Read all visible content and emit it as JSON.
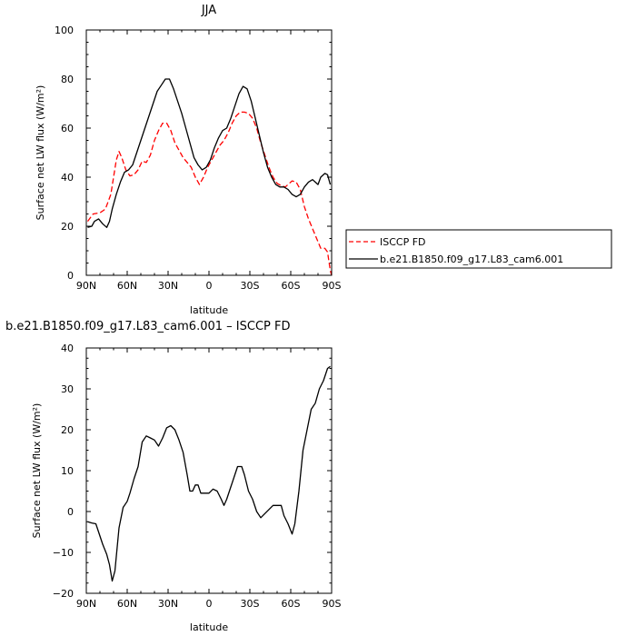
{
  "chart_data": [
    {
      "type": "line",
      "title": "JJA",
      "xlabel": "latitude",
      "ylabel": "Surface net LW flux (W/m²)",
      "xlim": [
        90,
        -90
      ],
      "ylim": [
        0,
        100
      ],
      "x_ticks": [
        90,
        60,
        30,
        0,
        -30,
        -60,
        -90
      ],
      "x_tick_labels": [
        "90N",
        "60N",
        "30N",
        "0",
        "30S",
        "60S",
        "90S"
      ],
      "y_ticks": [
        0,
        20,
        40,
        60,
        80,
        100
      ],
      "y_tick_labels": [
        "0",
        "20",
        "40",
        "60",
        "80",
        "100"
      ],
      "legend": {
        "placement": "right"
      },
      "series": [
        {
          "name": "ISCCP FD",
          "color": "#ff0000",
          "dash": true,
          "points": [
            [
              89,
              22
            ],
            [
              85,
              25
            ],
            [
              80,
              25.5
            ],
            [
              76,
              27
            ],
            [
              72,
              33
            ],
            [
              68,
              47
            ],
            [
              66,
              50.5
            ],
            [
              64,
              48
            ],
            [
              61,
              43
            ],
            [
              58,
              40.5
            ],
            [
              55,
              41
            ],
            [
              52,
              43
            ],
            [
              49,
              46.5
            ],
            [
              46,
              46
            ],
            [
              43,
              49
            ],
            [
              40,
              55
            ],
            [
              37,
              59
            ],
            [
              34,
              62
            ],
            [
              31,
              62
            ],
            [
              28,
              59
            ],
            [
              25,
              54
            ],
            [
              22,
              51
            ],
            [
              19,
              48
            ],
            [
              16,
              46
            ],
            [
              13,
              44
            ],
            [
              10,
              40
            ],
            [
              7,
              37
            ],
            [
              4,
              40
            ],
            [
              1,
              44
            ],
            [
              -2,
              47
            ],
            [
              -5,
              50
            ],
            [
              -8,
              53
            ],
            [
              -11,
              55
            ],
            [
              -14,
              58
            ],
            [
              -17,
              62
            ],
            [
              -20,
              65
            ],
            [
              -23,
              66.5
            ],
            [
              -26,
              66.5
            ],
            [
              -29,
              66
            ],
            [
              -32,
              64
            ],
            [
              -35,
              60
            ],
            [
              -38,
              54
            ],
            [
              -41,
              49
            ],
            [
              -44,
              44
            ],
            [
              -47,
              40
            ],
            [
              -50,
              37.5
            ],
            [
              -53,
              36.5
            ],
            [
              -56,
              36
            ],
            [
              -58,
              37
            ],
            [
              -61,
              38.5
            ],
            [
              -64,
              38
            ],
            [
              -67,
              35
            ],
            [
              -70,
              28
            ],
            [
              -73,
              23
            ],
            [
              -76,
              19
            ],
            [
              -79,
              15
            ],
            [
              -82,
              11
            ],
            [
              -85,
              11
            ],
            [
              -87,
              9.5
            ],
            [
              -89,
              2
            ],
            [
              -90,
              0
            ]
          ]
        },
        {
          "name": "b.e21.B1850.f09_g17.L83_cam6.001",
          "color": "#000000",
          "dash": false,
          "points": [
            [
              89,
              19.5
            ],
            [
              86,
              20
            ],
            [
              84,
              22
            ],
            [
              81,
              23
            ],
            [
              78,
              21
            ],
            [
              75,
              19.5
            ],
            [
              73,
              22
            ],
            [
              71,
              27
            ],
            [
              68,
              33
            ],
            [
              65,
              38
            ],
            [
              62,
              42
            ],
            [
              59,
              43
            ],
            [
              56,
              45
            ],
            [
              53,
              50
            ],
            [
              50,
              55
            ],
            [
              47,
              60
            ],
            [
              44,
              65
            ],
            [
              41,
              70
            ],
            [
              38,
              75
            ],
            [
              35,
              77.5
            ],
            [
              32,
              80
            ],
            [
              29,
              80
            ],
            [
              26,
              76
            ],
            [
              23,
              71
            ],
            [
              20,
              66
            ],
            [
              17,
              60
            ],
            [
              14,
              54
            ],
            [
              11,
              48
            ],
            [
              8,
              45
            ],
            [
              5,
              43
            ],
            [
              2,
              44
            ],
            [
              -1,
              47
            ],
            [
              -4,
              52
            ],
            [
              -7,
              56
            ],
            [
              -10,
              59
            ],
            [
              -13,
              60
            ],
            [
              -16,
              64
            ],
            [
              -19,
              69
            ],
            [
              -22,
              74
            ],
            [
              -25,
              77
            ],
            [
              -28,
              76
            ],
            [
              -31,
              71
            ],
            [
              -34,
              64
            ],
            [
              -37,
              57
            ],
            [
              -40,
              50
            ],
            [
              -43,
              44
            ],
            [
              -46,
              40
            ],
            [
              -49,
              37
            ],
            [
              -52,
              36
            ],
            [
              -55,
              36
            ],
            [
              -58,
              35
            ],
            [
              -61,
              33
            ],
            [
              -64,
              32
            ],
            [
              -67,
              33
            ],
            [
              -70,
              36
            ],
            [
              -73,
              38
            ],
            [
              -76,
              39
            ],
            [
              -78,
              38
            ],
            [
              -80,
              37
            ],
            [
              -82,
              40
            ],
            [
              -85,
              41.5
            ],
            [
              -87,
              41
            ],
            [
              -89,
              37
            ]
          ]
        }
      ]
    },
    {
      "type": "line",
      "title": "b.e21.B1850.f09_g17.L83_cam6.001 – ISCCP FD",
      "xlabel": "latitude",
      "ylabel": "Surface net LW flux (W/m²)",
      "xlim": [
        90,
        -90
      ],
      "ylim": [
        -20,
        40
      ],
      "x_ticks": [
        90,
        60,
        30,
        0,
        -30,
        -60,
        -90
      ],
      "x_tick_labels": [
        "90N",
        "60N",
        "30N",
        "0",
        "30S",
        "60S",
        "90S"
      ],
      "y_ticks": [
        -20,
        -10,
        0,
        10,
        20,
        30,
        40
      ],
      "y_tick_labels": [
        "−20",
        "−10",
        "0",
        "10",
        "20",
        "30",
        "40"
      ],
      "series": [
        {
          "color": "#000000",
          "dash": false,
          "points": [
            [
              89,
              -2.5
            ],
            [
              86,
              -2.8
            ],
            [
              83,
              -3
            ],
            [
              80,
              -6
            ],
            [
              78,
              -8
            ],
            [
              75,
              -10.5
            ],
            [
              73,
              -13
            ],
            [
              71,
              -17
            ],
            [
              69,
              -14.5
            ],
            [
              66,
              -4
            ],
            [
              63,
              1
            ],
            [
              60,
              2.5
            ],
            [
              58,
              4.5
            ],
            [
              55,
              8
            ],
            [
              52,
              11
            ],
            [
              49,
              17
            ],
            [
              46,
              18.5
            ],
            [
              43,
              18
            ],
            [
              40,
              17.5
            ],
            [
              37,
              16
            ],
            [
              34,
              18
            ],
            [
              31,
              20.5
            ],
            [
              28,
              21
            ],
            [
              25,
              20
            ],
            [
              22,
              17.5
            ],
            [
              19,
              14.5
            ],
            [
              16,
              9
            ],
            [
              14,
              5
            ],
            [
              12,
              5
            ],
            [
              10,
              6.5
            ],
            [
              8,
              6.5
            ],
            [
              6,
              4.5
            ],
            [
              3,
              4.5
            ],
            [
              0,
              4.5
            ],
            [
              -3,
              5.5
            ],
            [
              -6,
              5
            ],
            [
              -9,
              3
            ],
            [
              -11,
              1.5
            ],
            [
              -13,
              3
            ],
            [
              -16,
              6
            ],
            [
              -19,
              9
            ],
            [
              -21,
              11
            ],
            [
              -24,
              11
            ],
            [
              -26,
              9
            ],
            [
              -29,
              5
            ],
            [
              -32,
              3
            ],
            [
              -35,
              0
            ],
            [
              -38,
              -1.5
            ],
            [
              -41,
              -0.5
            ],
            [
              -44,
              0.5
            ],
            [
              -47,
              1.5
            ],
            [
              -50,
              1.5
            ],
            [
              -53,
              1.5
            ],
            [
              -55,
              -1
            ],
            [
              -58,
              -3
            ],
            [
              -61,
              -5.5
            ],
            [
              -63,
              -3
            ],
            [
              -66,
              5
            ],
            [
              -69,
              15
            ],
            [
              -72,
              20
            ],
            [
              -75,
              25
            ],
            [
              -78,
              26.5
            ],
            [
              -81,
              30
            ],
            [
              -84,
              32
            ],
            [
              -87,
              35
            ],
            [
              -89,
              35.5
            ]
          ]
        }
      ]
    }
  ]
}
